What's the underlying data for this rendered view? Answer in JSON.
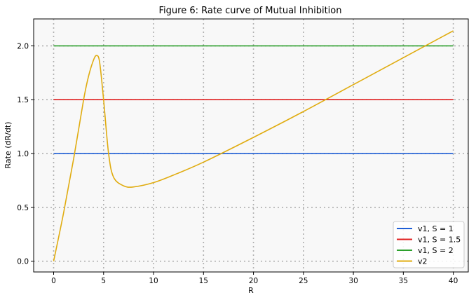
{
  "chart_data": {
    "type": "line",
    "title": "Figure 6: Rate curve of Mutual Inhibition",
    "xlabel": "R",
    "ylabel": "Rate (dR/dt)",
    "xlim": [
      -2,
      41.5
    ],
    "ylim": [
      -0.1,
      2.25
    ],
    "xticks": [
      0,
      5,
      10,
      15,
      20,
      25,
      30,
      35,
      40
    ],
    "yticks": [
      0.0,
      0.5,
      1.0,
      1.5,
      2.0
    ],
    "xtick_labels": [
      "0",
      "5",
      "10",
      "15",
      "20",
      "25",
      "30",
      "35",
      "40"
    ],
    "ytick_labels": [
      "0.0",
      "0.5",
      "1.0",
      "1.5",
      "2.0"
    ],
    "grid": true,
    "legend_position": "lower-right",
    "series": [
      {
        "name": "v1, S = 1",
        "color": "#1f5fd6",
        "x": [
          0,
          40
        ],
        "y": [
          1.0,
          1.0
        ]
      },
      {
        "name": "v1, S = 1.5",
        "color": "#e02020",
        "x": [
          0,
          40
        ],
        "y": [
          1.5,
          1.5
        ]
      },
      {
        "name": "v1, S = 2",
        "color": "#2ca02c",
        "x": [
          0,
          40
        ],
        "y": [
          2.0,
          2.0
        ]
      },
      {
        "name": "v2",
        "color": "#e0ac10",
        "x": [
          0,
          1,
          2,
          3,
          3.5,
          4,
          4.3,
          4.6,
          5,
          5.5,
          6,
          7,
          8,
          10,
          12,
          15,
          20,
          25,
          30,
          35,
          40
        ],
        "y": [
          0.0,
          0.45,
          0.95,
          1.5,
          1.72,
          1.87,
          1.91,
          1.85,
          1.5,
          1.0,
          0.78,
          0.7,
          0.69,
          0.73,
          0.8,
          0.92,
          1.15,
          1.39,
          1.64,
          1.89,
          2.14
        ]
      }
    ]
  }
}
